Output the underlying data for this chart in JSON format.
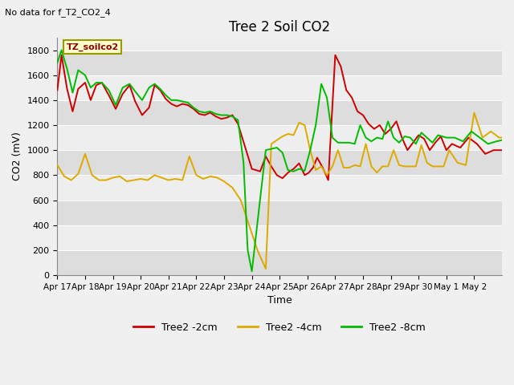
{
  "title": "Tree 2 Soil CO2",
  "subtitle": "No data for f_T2_CO2_4",
  "xlabel": "Time",
  "ylabel": "CO2 (mV)",
  "ylim": [
    0,
    1900
  ],
  "yticks": [
    0,
    200,
    400,
    600,
    800,
    1000,
    1200,
    1400,
    1600,
    1800
  ],
  "xtick_labels": [
    "Apr 17",
    "Apr 18",
    "Apr 19",
    "Apr 20",
    "Apr 21",
    "Apr 22",
    "Apr 23",
    "Apr 24",
    "Apr 25",
    "Apr 26",
    "Apr 27",
    "Apr 28",
    "Apr 29",
    "Apr 30",
    "May 1",
    "May 2"
  ],
  "legend_label": "TZ_soilco2",
  "colors": {
    "red": "#cc0000",
    "orange": "#ddaa00",
    "green": "#00bb00",
    "bg_dark": "#dddddd",
    "bg_light": "#eeeeee"
  },
  "line_width": 1.4,
  "red_x": [
    0,
    0.15,
    0.35,
    0.55,
    0.75,
    1.0,
    1.2,
    1.4,
    1.6,
    1.85,
    2.1,
    2.35,
    2.6,
    2.8,
    3.05,
    3.3,
    3.5,
    3.7,
    3.9,
    4.1,
    4.3,
    4.5,
    4.7,
    4.9,
    5.1,
    5.3,
    5.5,
    5.7,
    5.9,
    6.1,
    6.3,
    6.5,
    7.0,
    7.3,
    7.5,
    7.7,
    7.9,
    8.1,
    8.3,
    8.5,
    8.7,
    8.9,
    9.05,
    9.2,
    9.35,
    9.55,
    9.75,
    10.0,
    10.2,
    10.4,
    10.6,
    10.8,
    11.0,
    11.2,
    11.4,
    11.6,
    11.8,
    12.0,
    12.2,
    12.4,
    12.6,
    12.8,
    13.0,
    13.2,
    13.4,
    13.6,
    13.8,
    14.0,
    14.2,
    14.5,
    14.8,
    15.1,
    15.4,
    15.7,
    16.0
  ],
  "red_y": [
    1480,
    1760,
    1490,
    1310,
    1490,
    1540,
    1400,
    1520,
    1540,
    1440,
    1330,
    1450,
    1520,
    1390,
    1280,
    1340,
    1520,
    1480,
    1410,
    1370,
    1350,
    1370,
    1360,
    1330,
    1290,
    1280,
    1300,
    1270,
    1250,
    1260,
    1280,
    1210,
    850,
    830,
    950,
    870,
    800,
    775,
    820,
    850,
    895,
    800,
    820,
    860,
    940,
    860,
    760,
    1760,
    1670,
    1480,
    1420,
    1310,
    1280,
    1210,
    1170,
    1200,
    1130,
    1170,
    1230,
    1100,
    1000,
    1060,
    1120,
    1090,
    1000,
    1060,
    1110,
    1000,
    1050,
    1020,
    1100,
    1050,
    970,
    1000,
    1000
  ],
  "orange_x": [
    0,
    0.25,
    0.5,
    0.75,
    1.0,
    1.25,
    1.5,
    1.75,
    2.0,
    2.25,
    2.5,
    2.75,
    3.0,
    3.25,
    3.5,
    3.75,
    4.0,
    4.25,
    4.5,
    4.75,
    5.0,
    5.25,
    5.5,
    5.75,
    6.0,
    6.3,
    6.6,
    6.9,
    7.2,
    7.5,
    7.7,
    7.9,
    8.1,
    8.3,
    8.5,
    8.7,
    8.9,
    9.1,
    9.3,
    9.5,
    9.7,
    9.9,
    10.1,
    10.3,
    10.5,
    10.7,
    10.9,
    11.1,
    11.3,
    11.5,
    11.7,
    11.9,
    12.1,
    12.3,
    12.5,
    12.7,
    12.9,
    13.1,
    13.3,
    13.5,
    13.7,
    13.9,
    14.1,
    14.4,
    14.7,
    15.0,
    15.3,
    15.6,
    15.9,
    16.0
  ],
  "orange_y": [
    880,
    790,
    760,
    810,
    970,
    800,
    760,
    760,
    780,
    790,
    750,
    760,
    770,
    760,
    800,
    780,
    760,
    770,
    760,
    950,
    800,
    770,
    790,
    780,
    750,
    700,
    600,
    400,
    200,
    50,
    1050,
    1080,
    1110,
    1130,
    1120,
    1220,
    1200,
    1000,
    840,
    870,
    800,
    870,
    1000,
    860,
    860,
    880,
    870,
    1050,
    870,
    820,
    870,
    870,
    1000,
    880,
    870,
    870,
    870,
    1040,
    900,
    870,
    870,
    870,
    1000,
    900,
    880,
    1300,
    1100,
    1150,
    1100,
    1100
  ],
  "green_x": [
    0,
    0.15,
    0.35,
    0.55,
    0.75,
    1.0,
    1.2,
    1.4,
    1.6,
    1.85,
    2.1,
    2.35,
    2.6,
    2.8,
    3.05,
    3.3,
    3.5,
    3.7,
    3.9,
    4.1,
    4.3,
    4.5,
    4.7,
    4.9,
    5.1,
    5.3,
    5.5,
    5.7,
    5.9,
    6.1,
    6.3,
    6.5,
    6.7,
    6.85,
    7.0,
    7.5,
    7.7,
    7.9,
    8.1,
    8.3,
    8.5,
    8.7,
    8.9,
    9.1,
    9.3,
    9.5,
    9.7,
    9.9,
    10.1,
    10.3,
    10.5,
    10.7,
    10.9,
    11.1,
    11.3,
    11.5,
    11.7,
    11.9,
    12.1,
    12.3,
    12.5,
    12.7,
    12.9,
    13.1,
    13.3,
    13.5,
    13.7,
    14.0,
    14.3,
    14.6,
    14.9,
    15.2,
    15.5,
    15.8,
    16.0
  ],
  "green_y": [
    1700,
    1800,
    1650,
    1460,
    1640,
    1600,
    1500,
    1540,
    1540,
    1480,
    1360,
    1500,
    1530,
    1470,
    1400,
    1500,
    1530,
    1490,
    1440,
    1400,
    1400,
    1390,
    1380,
    1340,
    1310,
    1300,
    1310,
    1290,
    1280,
    1280,
    1270,
    1240,
    900,
    200,
    30,
    1000,
    1010,
    1020,
    980,
    840,
    830,
    850,
    835,
    1000,
    1200,
    1530,
    1420,
    1100,
    1060,
    1060,
    1060,
    1050,
    1200,
    1100,
    1070,
    1100,
    1090,
    1230,
    1100,
    1060,
    1110,
    1100,
    1050,
    1140,
    1100,
    1060,
    1120,
    1100,
    1100,
    1070,
    1150,
    1100,
    1050,
    1070,
    1080
  ]
}
